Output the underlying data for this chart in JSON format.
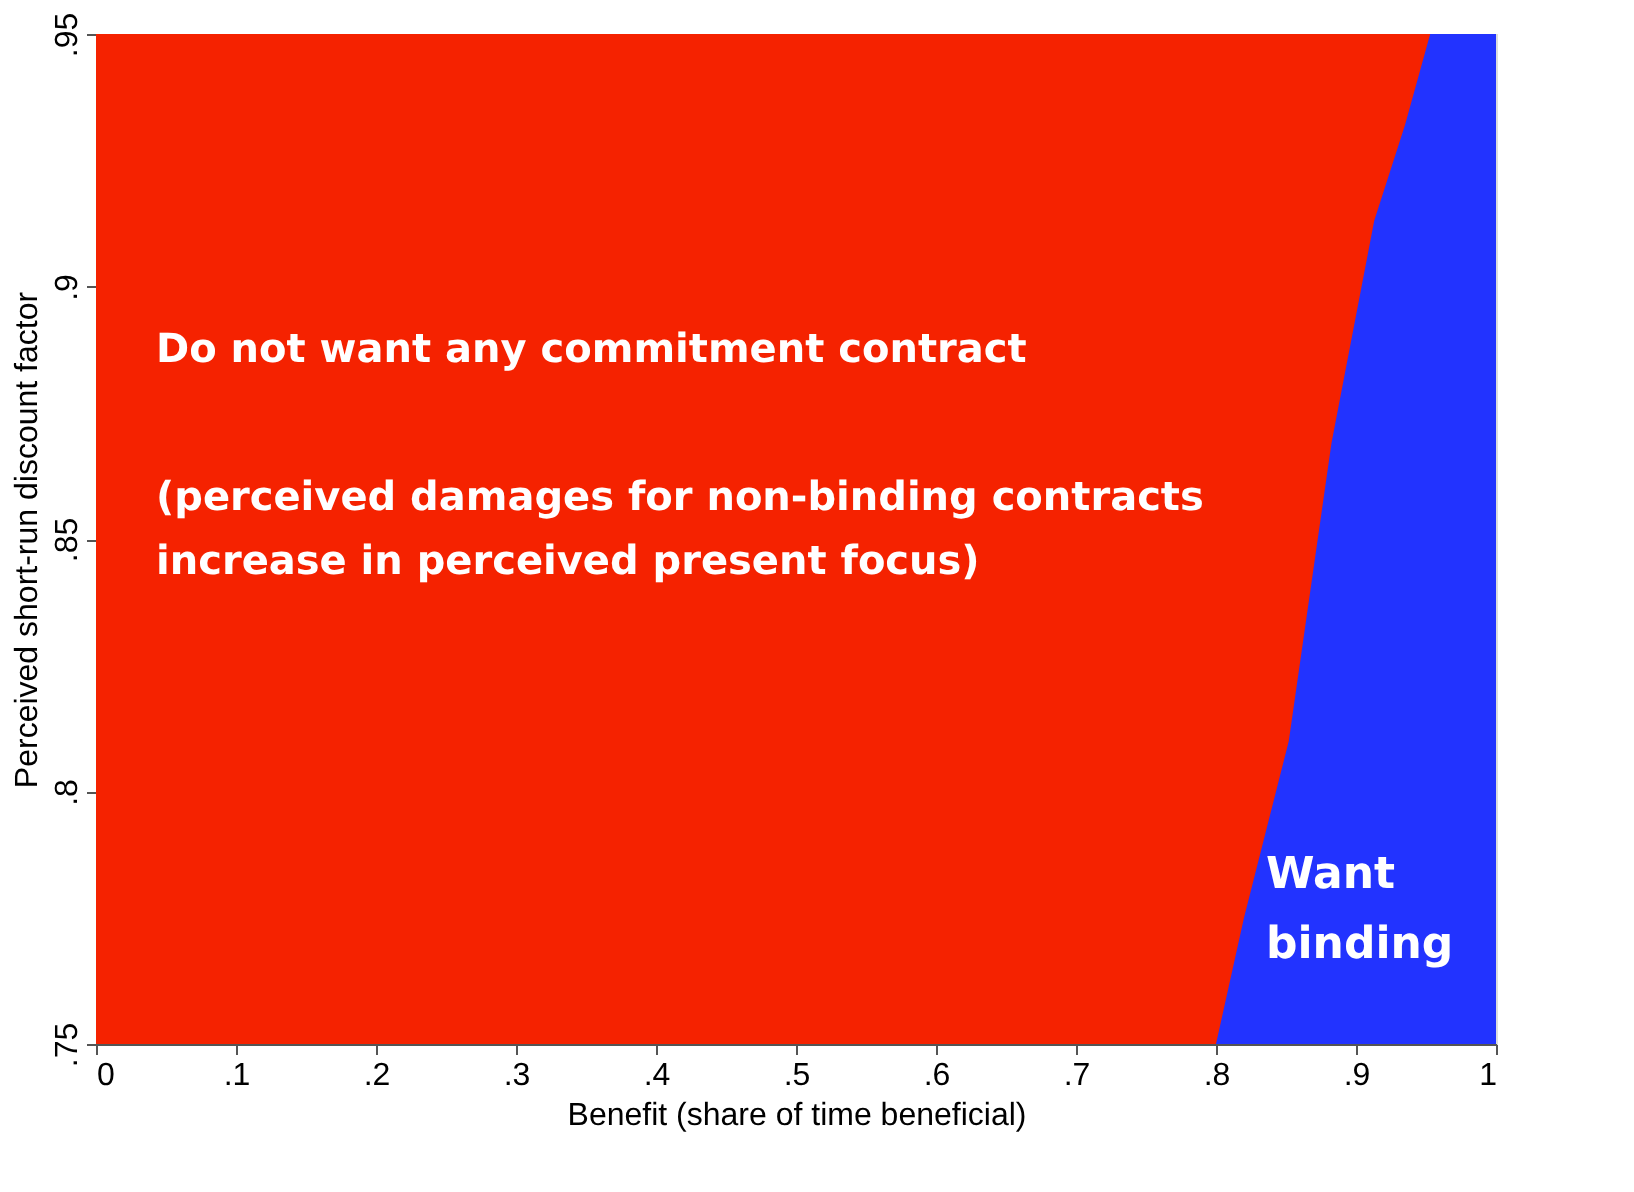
{
  "chart_data": {
    "type": "area",
    "xlabel": "Benefit (share of time beneficial)",
    "ylabel": "Perceived short-run discount factor",
    "xlim": [
      0,
      1
    ],
    "ylim": [
      0.75,
      0.95
    ],
    "xticks": [
      0,
      {
        "value": 0.1,
        "label": ".1"
      },
      {
        "value": 0.2,
        "label": ".2"
      },
      {
        "value": 0.3,
        "label": ".3"
      },
      {
        "value": 0.4,
        "label": ".4"
      },
      {
        "value": 0.5,
        "label": ".5"
      },
      {
        "value": 0.6,
        "label": ".6"
      },
      {
        "value": 0.7,
        "label": ".7"
      },
      {
        "value": 0.8,
        "label": ".8"
      },
      {
        "value": 0.9,
        "label": ".9"
      },
      1
    ],
    "yticks": [
      {
        "value": 0.75,
        "label": ".75"
      },
      {
        "value": 0.8,
        "label": ".8"
      },
      {
        "value": 0.85,
        "label": ".85"
      },
      {
        "value": 0.9,
        "label": ".9"
      },
      {
        "value": 0.95,
        "label": ".95"
      }
    ],
    "bands": [
      {
        "axis": "y",
        "from": 0.75,
        "to": 0.95,
        "color": "#f52200"
      }
    ],
    "series": [
      {
        "color": "#2233ff",
        "x": [
          0.8,
          0.82,
          0.852,
          0.8825,
          0.913,
          0.935,
          0.953,
          1
        ],
        "values": [
          0.75,
          0.775,
          0.81,
          0.869,
          0.913,
          0.932,
          0.95,
          0.95
        ]
      }
    ],
    "annotations": [
      "Do not want any commitment contract",
      "(perceived damages for non-binding contracts\nincrease in perceived present focus)",
      "Want\nbinding"
    ],
    "marker": "none"
  }
}
